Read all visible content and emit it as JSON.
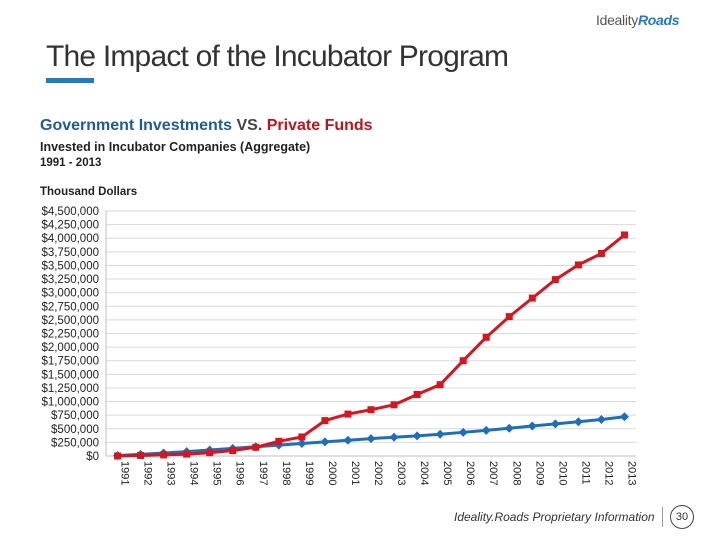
{
  "logo": {
    "brand": "Ideality",
    "mark": "Roads"
  },
  "slide": {
    "title": "The Impact of the Incubator Program",
    "subtitle_gov": "Government Investments",
    "subtitle_vs": " VS. ",
    "subtitle_priv": "Private Funds",
    "caption": "Invested in Incubator Companies (Aggregate)",
    "years": "1991 - 2013",
    "footer": "Ideality.Roads Proprietary Information",
    "page": "30"
  },
  "colors": {
    "government": "#1e6fb8",
    "private": "#d9141e",
    "grid": "#d9d9d9"
  },
  "chart_data": {
    "type": "line",
    "title": "",
    "ylabel": "Thousand Dollars",
    "xlabel": "",
    "ylim": [
      0,
      4500000
    ],
    "yticks": [
      0,
      250000,
      500000,
      750000,
      1000000,
      1250000,
      1500000,
      1750000,
      2000000,
      2250000,
      2500000,
      2750000,
      3000000,
      3250000,
      3500000,
      3750000,
      4000000,
      4250000,
      4500000
    ],
    "ytick_labels": [
      "$0",
      "$250,000",
      "$500,000",
      "$750,000",
      "$1,000,000",
      "$1,250,000",
      "$1,500,000",
      "$1,750,000",
      "$2,000,000",
      "$2,250,000",
      "$2,500,000",
      "$2,750,000",
      "$3,000,000",
      "$3,250,000",
      "$3,500,000",
      "$3,750,000",
      "$4,000,000",
      "$4,250,000",
      "$4,500,000"
    ],
    "categories": [
      "1991",
      "1992",
      "1993",
      "1994",
      "1995",
      "1996",
      "1997",
      "1998",
      "1999",
      "2000",
      "2001",
      "2002",
      "2003",
      "2004",
      "2005",
      "2006",
      "2007",
      "2008",
      "2009",
      "2010",
      "2011",
      "2012",
      "2013"
    ],
    "series": [
      {
        "name": "Government Investments",
        "color": "#1e6fb8",
        "marker": "diamond",
        "values": [
          10000,
          30000,
          55000,
          80000,
          110000,
          140000,
          170000,
          200000,
          230000,
          260000,
          290000,
          320000,
          345000,
          370000,
          400000,
          435000,
          470000,
          510000,
          550000,
          590000,
          630000,
          670000,
          720000
        ]
      },
      {
        "name": "Private Funds",
        "color": "#d9141e",
        "marker": "square",
        "values": [
          0,
          10000,
          20000,
          35000,
          60000,
          100000,
          160000,
          270000,
          350000,
          650000,
          770000,
          850000,
          940000,
          1130000,
          1310000,
          1750000,
          2180000,
          2560000,
          2900000,
          3240000,
          3510000,
          3720000,
          4060000
        ]
      }
    ]
  }
}
